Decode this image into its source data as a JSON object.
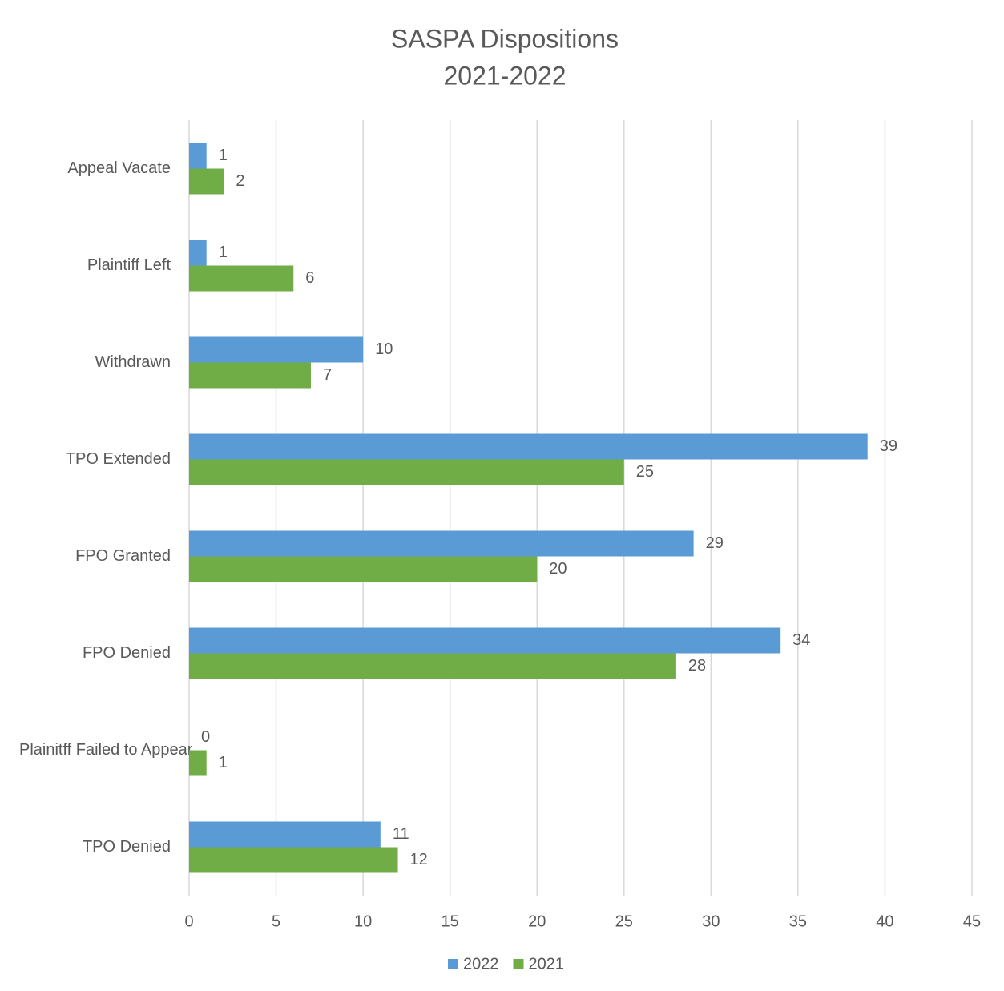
{
  "chart_data": {
    "type": "bar",
    "orientation": "horizontal",
    "title": [
      "SASPA Dispositions",
      "2021-2022"
    ],
    "categories": [
      "Appeal Vacate",
      "Plaintiff Left",
      "Withdrawn",
      "TPO Extended",
      "FPO Granted",
      "FPO Denied",
      "Plainitff Failed to Appear",
      "TPO Denied"
    ],
    "series": [
      {
        "name": "2022",
        "color": "#5b9bd5",
        "values": [
          1,
          1,
          10,
          39,
          29,
          34,
          0,
          11
        ]
      },
      {
        "name": "2021",
        "color": "#70ad47",
        "values": [
          2,
          6,
          7,
          25,
          20,
          28,
          1,
          12
        ]
      }
    ],
    "xlim": [
      0,
      45
    ],
    "xticks": [
      0,
      5,
      10,
      15,
      20,
      25,
      30,
      35,
      40,
      45
    ],
    "grid": true,
    "legend": "bottom"
  }
}
